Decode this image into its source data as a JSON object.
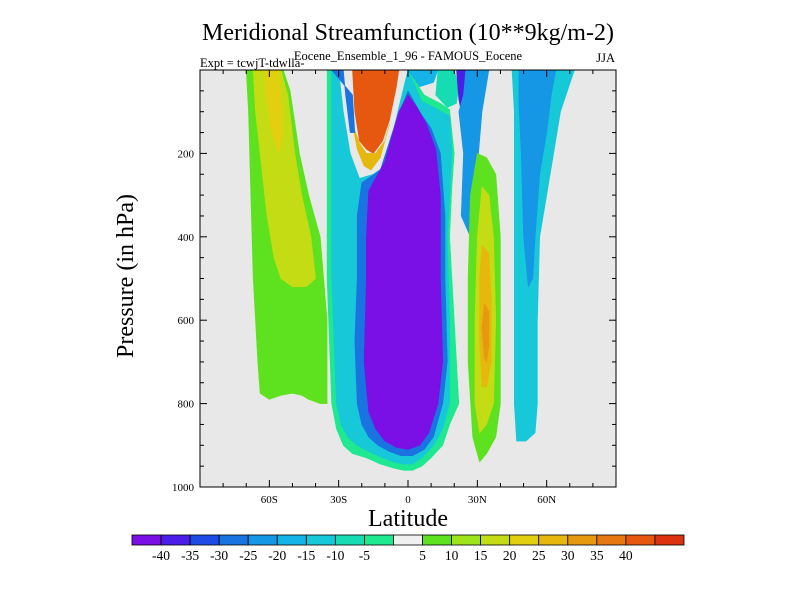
{
  "chart_data": {
    "type": "heatmap",
    "title": "Meridional Streamfunction (10**9kg/m-2)",
    "subtitle": "Eocene_Ensemble_1_96 - FAMOUS_Eocene",
    "experiment": "Expt = tcwjT-tdwlla-",
    "season": "JJA",
    "xlabel": "Latitude",
    "ylabel": "Pressure (in hPa)",
    "xlim": [
      -90,
      90
    ],
    "ylim": [
      1000,
      0
    ],
    "x_ticks": [
      {
        "value": -60,
        "label": "60S"
      },
      {
        "value": -30,
        "label": "30S"
      },
      {
        "value": 0,
        "label": "0"
      },
      {
        "value": 30,
        "label": "30N"
      },
      {
        "value": 60,
        "label": "60N"
      }
    ],
    "y_ticks": [
      {
        "value": 200,
        "label": "200"
      },
      {
        "value": 400,
        "label": "400"
      },
      {
        "value": 600,
        "label": "600"
      },
      {
        "value": 800,
        "label": "800"
      },
      {
        "value": 1000,
        "label": "1000"
      }
    ],
    "missing_color": "#e8e8e8",
    "colorbar": {
      "colors": [
        "#7a0fe6",
        "#4a1ee6",
        "#1e4be6",
        "#1973e0",
        "#1597e6",
        "#14b4e6",
        "#17c8d8",
        "#16dcb4",
        "#1ee890",
        "#f0f0f0",
        "#5ee11e",
        "#9ee41a",
        "#c4dc14",
        "#e2d010",
        "#e6b80e",
        "#e6980f",
        "#e6780f",
        "#e6580f",
        "#dc320f"
      ],
      "labels": [
        "-40",
        "-35",
        "-30",
        "-25",
        "-20",
        "-15",
        "-10",
        "-5",
        "5",
        "10",
        "15",
        "20",
        "25",
        "30",
        "35",
        "40"
      ]
    },
    "regions": [
      {
        "name": "sh-ferrel-outer",
        "level": "10",
        "color": "#5ee11e",
        "points": [
          [
            -70,
            0
          ],
          [
            -54,
            0
          ],
          [
            -51,
            50
          ],
          [
            -47,
            200
          ],
          [
            -43,
            300
          ],
          [
            -38,
            400
          ],
          [
            -35,
            600
          ],
          [
            -35,
            800
          ],
          [
            -38,
            800
          ],
          [
            -43,
            790
          ],
          [
            -46,
            780
          ],
          [
            -50,
            775
          ],
          [
            -55,
            780
          ],
          [
            -60,
            790
          ],
          [
            -64,
            775
          ],
          [
            -65,
            700
          ],
          [
            -67,
            500
          ],
          [
            -68,
            300
          ],
          [
            -69,
            100
          ]
        ]
      },
      {
        "name": "sh-ferrel-inner",
        "level": "15",
        "color": "#c4dc14",
        "points": [
          [
            -67,
            0
          ],
          [
            -55,
            0
          ],
          [
            -52,
            60
          ],
          [
            -49,
            200
          ],
          [
            -46,
            300
          ],
          [
            -42,
            400
          ],
          [
            -40,
            500
          ],
          [
            -44,
            520
          ],
          [
            -50,
            520
          ],
          [
            -55,
            500
          ],
          [
            -58,
            450
          ],
          [
            -61,
            350
          ],
          [
            -64,
            200
          ],
          [
            -66,
            100
          ]
        ]
      },
      {
        "name": "sh-ferrel-core",
        "level": "20",
        "color": "#e2d010",
        "points": [
          [
            -62,
            0
          ],
          [
            -56,
            0
          ],
          [
            -55,
            60
          ],
          [
            -54,
            150
          ],
          [
            -56,
            200
          ],
          [
            -59,
            150
          ],
          [
            -61,
            80
          ]
        ]
      },
      {
        "name": "hadley-outer-ring",
        "level": "-5",
        "color": "#1ee890",
        "points": [
          [
            -35,
            0
          ],
          [
            -31,
            0
          ],
          [
            -30,
            100
          ],
          [
            -28,
            200
          ],
          [
            -25,
            280
          ],
          [
            -20,
            300
          ],
          [
            -14,
            280
          ],
          [
            -8,
            260
          ],
          [
            -3,
            100
          ],
          [
            0,
            0
          ],
          [
            7,
            60
          ],
          [
            14,
            80
          ],
          [
            18,
            95
          ],
          [
            20,
            200
          ],
          [
            19,
            280
          ],
          [
            18,
            400
          ],
          [
            20,
            600
          ],
          [
            22,
            800
          ],
          [
            18,
            850
          ],
          [
            15,
            900
          ],
          [
            10,
            930
          ],
          [
            6,
            950
          ],
          [
            2,
            960
          ],
          [
            -2,
            960
          ],
          [
            -6,
            955
          ],
          [
            -12,
            945
          ],
          [
            -18,
            930
          ],
          [
            -24,
            920
          ],
          [
            -28,
            900
          ],
          [
            -31,
            860
          ],
          [
            -33,
            800
          ],
          [
            -35,
            500
          ]
        ]
      },
      {
        "name": "hadley-outer",
        "level": "-10",
        "color": "#17c8d8",
        "points": [
          [
            -33,
            0
          ],
          [
            -30,
            0
          ],
          [
            -28,
            100
          ],
          [
            -25,
            200
          ],
          [
            -21,
            260
          ],
          [
            -15,
            250
          ],
          [
            -10,
            230
          ],
          [
            -4,
            90
          ],
          [
            0,
            0
          ],
          [
            6,
            75
          ],
          [
            13,
            95
          ],
          [
            18,
            110
          ],
          [
            19,
            200
          ],
          [
            18,
            300
          ],
          [
            17,
            400
          ],
          [
            18,
            600
          ],
          [
            18,
            800
          ],
          [
            15,
            860
          ],
          [
            11,
            900
          ],
          [
            6,
            930
          ],
          [
            2,
            945
          ],
          [
            -2,
            945
          ],
          [
            -6,
            940
          ],
          [
            -11,
            930
          ],
          [
            -17,
            915
          ],
          [
            -22,
            900
          ],
          [
            -26,
            880
          ],
          [
            -29,
            850
          ],
          [
            -31,
            800
          ],
          [
            -33,
            500
          ]
        ]
      },
      {
        "name": "hadley-mid",
        "level": "-25",
        "color": "#1973e0",
        "points": [
          [
            -20,
            270
          ],
          [
            -12,
            240
          ],
          [
            -5,
            120
          ],
          [
            0,
            50
          ],
          [
            5,
            100
          ],
          [
            10,
            140
          ],
          [
            14,
            200
          ],
          [
            16,
            350
          ],
          [
            16,
            500
          ],
          [
            17,
            700
          ],
          [
            15,
            800
          ],
          [
            11,
            880
          ],
          [
            7,
            910
          ],
          [
            2,
            925
          ],
          [
            -3,
            925
          ],
          [
            -8,
            915
          ],
          [
            -13,
            900
          ],
          [
            -17,
            880
          ],
          [
            -20,
            850
          ],
          [
            -22,
            800
          ],
          [
            -23,
            650
          ],
          [
            -22,
            500
          ],
          [
            -22,
            350
          ]
        ]
      },
      {
        "name": "hadley-core",
        "level": "-40",
        "color": "#7a0fe6",
        "points": [
          [
            -17,
            290
          ],
          [
            -10,
            220
          ],
          [
            -4,
            100
          ],
          [
            0,
            60
          ],
          [
            4,
            90
          ],
          [
            8,
            130
          ],
          [
            12,
            190
          ],
          [
            14,
            300
          ],
          [
            14,
            500
          ],
          [
            15,
            700
          ],
          [
            13,
            800
          ],
          [
            9,
            870
          ],
          [
            5,
            900
          ],
          [
            0,
            910
          ],
          [
            -5,
            905
          ],
          [
            -10,
            890
          ],
          [
            -14,
            860
          ],
          [
            -17,
            820
          ],
          [
            -19,
            700
          ],
          [
            -18,
            500
          ],
          [
            -18,
            400
          ]
        ]
      },
      {
        "name": "sh-upper-wedge",
        "level": "35",
        "color": "#e6580f",
        "points": [
          [
            -24,
            0
          ],
          [
            -4,
            0
          ],
          [
            -5,
            40
          ],
          [
            -8,
            120
          ],
          [
            -11,
            170
          ],
          [
            -15,
            200
          ],
          [
            -18,
            190
          ],
          [
            -21,
            170
          ],
          [
            -23,
            100
          ]
        ]
      },
      {
        "name": "sh-upper-rim",
        "level": "25",
        "color": "#e6b80e",
        "points": [
          [
            -24,
            130
          ],
          [
            -22,
            190
          ],
          [
            -19,
            230
          ],
          [
            -16,
            240
          ],
          [
            -12,
            210
          ],
          [
            -8,
            130
          ],
          [
            -10,
            170
          ],
          [
            -14,
            200
          ],
          [
            -18,
            200
          ],
          [
            -21,
            175
          ]
        ]
      },
      {
        "name": "equatorial-notch-outer",
        "level": "-25",
        "color": "#1973e0",
        "points": [
          [
            -33,
            0
          ],
          [
            -28,
            0
          ],
          [
            -27,
            60
          ],
          [
            -25,
            150
          ],
          [
            -23,
            150
          ],
          [
            -24,
            60
          ]
        ]
      },
      {
        "name": "equatorial-cap",
        "level": "-15",
        "color": "#14b4e6",
        "points": [
          [
            0,
            0
          ],
          [
            5,
            40
          ],
          [
            11,
            30
          ],
          [
            13,
            0
          ]
        ]
      },
      {
        "name": "equatorial-cap-outer",
        "level": "-5",
        "color": "#16dcb4",
        "points": [
          [
            13,
            0
          ],
          [
            20,
            0
          ],
          [
            22,
            40
          ],
          [
            21,
            80
          ],
          [
            17,
            90
          ],
          [
            12,
            60
          ]
        ]
      },
      {
        "name": "nh-descending-branch",
        "level": "-35",
        "color": "#4a1ee6",
        "points": [
          [
            21,
            0
          ],
          [
            25,
            0
          ],
          [
            24,
            60
          ],
          [
            23,
            100
          ],
          [
            22,
            70
          ]
        ]
      },
      {
        "name": "nh-descending-edge",
        "level": "-20",
        "color": "#1597e6",
        "points": [
          [
            25,
            0
          ],
          [
            35,
            0
          ],
          [
            32,
            100
          ],
          [
            29,
            300
          ],
          [
            27,
            400
          ],
          [
            23,
            350
          ],
          [
            24,
            200
          ],
          [
            22,
            100
          ],
          [
            24,
            60
          ]
        ]
      },
      {
        "name": "nh-ferrel-outer",
        "level": "5",
        "color": "#5ee11e",
        "points": [
          [
            30,
            200
          ],
          [
            34,
            210
          ],
          [
            38,
            250
          ],
          [
            40,
            400
          ],
          [
            40,
            600
          ],
          [
            40,
            800
          ],
          [
            38,
            880
          ],
          [
            34,
            920
          ],
          [
            31,
            940
          ],
          [
            28,
            880
          ],
          [
            26,
            700
          ],
          [
            26,
            500
          ],
          [
            27,
            300
          ]
        ]
      },
      {
        "name": "nh-ferrel-mid",
        "level": "15",
        "color": "#c4dc14",
        "points": [
          [
            32,
            280
          ],
          [
            35,
            300
          ],
          [
            37,
            400
          ],
          [
            38,
            600
          ],
          [
            37,
            800
          ],
          [
            34,
            850
          ],
          [
            31,
            870
          ],
          [
            29,
            800
          ],
          [
            29,
            600
          ],
          [
            30,
            400
          ]
        ]
      },
      {
        "name": "nh-ferrel-core",
        "level": "25",
        "color": "#e6b80e",
        "points": [
          [
            32,
            420
          ],
          [
            35,
            440
          ],
          [
            36,
            550
          ],
          [
            36,
            700
          ],
          [
            34,
            760
          ],
          [
            32,
            760
          ],
          [
            31,
            650
          ],
          [
            31,
            500
          ]
        ]
      },
      {
        "name": "nh-ferrel-peak",
        "level": "30",
        "color": "#e6980f",
        "points": [
          [
            33,
            560
          ],
          [
            35,
            580
          ],
          [
            35,
            660
          ],
          [
            34,
            700
          ],
          [
            33,
            690
          ],
          [
            32,
            620
          ]
        ]
      },
      {
        "name": "nh-polar-outer",
        "level": "-10",
        "color": "#17c8d8",
        "points": [
          [
            45,
            0
          ],
          [
            72,
            0
          ],
          [
            69,
            50
          ],
          [
            66,
            100
          ],
          [
            63,
            200
          ],
          [
            60,
            300
          ],
          [
            57,
            400
          ],
          [
            56,
            600
          ],
          [
            56,
            800
          ],
          [
            55,
            870
          ],
          [
            51,
            890
          ],
          [
            47,
            890
          ],
          [
            46,
            800
          ],
          [
            46,
            600
          ],
          [
            46,
            400
          ],
          [
            46,
            200
          ],
          [
            46,
            100
          ]
        ]
      },
      {
        "name": "nh-polar-core",
        "level": "-20",
        "color": "#1597e6",
        "points": [
          [
            48,
            0
          ],
          [
            64,
            0
          ],
          [
            62,
            60
          ],
          [
            60,
            150
          ],
          [
            57,
            250
          ],
          [
            55,
            400
          ],
          [
            54,
            500
          ],
          [
            52,
            520
          ],
          [
            50,
            400
          ],
          [
            49,
            200
          ],
          [
            48,
            80
          ]
        ]
      }
    ]
  }
}
